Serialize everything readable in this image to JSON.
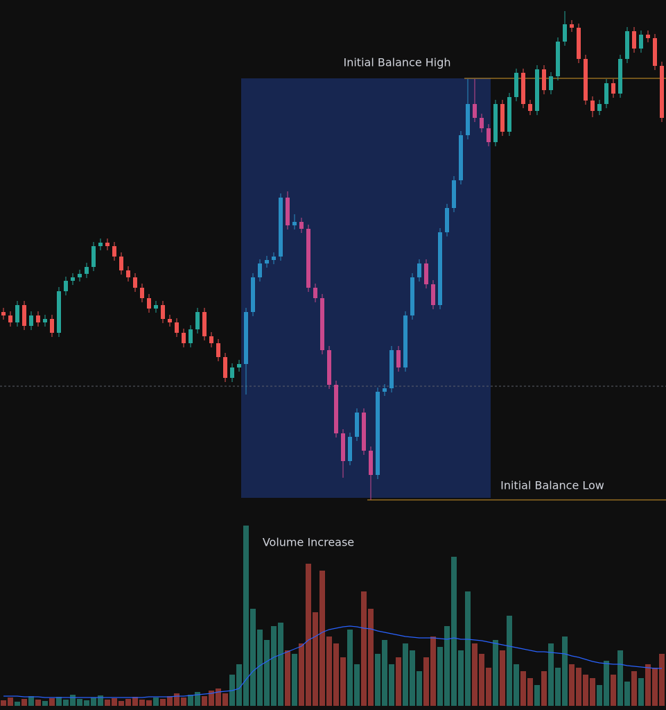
{
  "chart_data": {
    "type": "candlestick",
    "ylim": [
      0,
      1024
    ],
    "volume_ylim": [
      0,
      280
    ],
    "up_color": "#26a69a",
    "down_color": "#ef5350",
    "highlight_up_color": "#2a8fc4",
    "highlight_down_color": "#c9488c",
    "volume_up_color": "#22695f",
    "volume_down_color": "#8a3530",
    "volume_ma_color": "#2962ff",
    "box_color": "#172650",
    "level_color": "#d39a2a",
    "reference_line": 467,
    "initial_balance_high": 911,
    "initial_balance_low": 303,
    "annotations": [
      "Initial Balance High",
      "Initial Balance Low",
      "Volume Increase"
    ],
    "ohlc": [
      [
        574,
        580,
        563,
        569
      ],
      [
        569,
        575,
        553,
        559
      ],
      [
        559,
        590,
        553,
        584
      ],
      [
        584,
        590,
        548,
        554
      ],
      [
        554,
        575,
        548,
        569
      ],
      [
        569,
        575,
        553,
        559
      ],
      [
        559,
        570,
        553,
        564
      ],
      [
        564,
        570,
        538,
        544
      ],
      [
        544,
        610,
        538,
        604
      ],
      [
        604,
        625,
        598,
        619
      ],
      [
        619,
        630,
        613,
        624
      ],
      [
        624,
        635,
        618,
        629
      ],
      [
        629,
        645,
        623,
        639
      ],
      [
        639,
        675,
        633,
        669
      ],
      [
        669,
        680,
        663,
        674
      ],
      [
        674,
        680,
        663,
        669
      ],
      [
        669,
        675,
        648,
        654
      ],
      [
        654,
        660,
        628,
        634
      ],
      [
        634,
        640,
        618,
        624
      ],
      [
        624,
        630,
        603,
        609
      ],
      [
        609,
        615,
        588,
        594
      ],
      [
        594,
        600,
        573,
        579
      ],
      [
        579,
        590,
        573,
        584
      ],
      [
        584,
        590,
        558,
        564
      ],
      [
        564,
        570,
        553,
        559
      ],
      [
        559,
        565,
        538,
        544
      ],
      [
        544,
        550,
        523,
        529
      ],
      [
        529,
        555,
        523,
        549
      ],
      [
        549,
        580,
        543,
        574
      ],
      [
        574,
        580,
        533,
        539
      ],
      [
        539,
        545,
        523,
        529
      ],
      [
        529,
        535,
        503,
        509
      ],
      [
        509,
        515,
        473,
        479
      ],
      [
        479,
        500,
        473,
        494
      ],
      [
        494,
        505,
        488,
        499
      ],
      [
        499,
        580,
        455,
        574
      ],
      [
        574,
        630,
        568,
        624
      ],
      [
        624,
        650,
        618,
        644
      ],
      [
        644,
        655,
        638,
        649
      ],
      [
        649,
        660,
        643,
        654
      ],
      [
        654,
        745,
        648,
        739
      ],
      [
        739,
        748,
        693,
        699
      ],
      [
        699,
        715,
        693,
        704
      ],
      [
        704,
        710,
        688,
        694
      ],
      [
        694,
        700,
        603,
        609
      ],
      [
        609,
        615,
        588,
        594
      ],
      [
        594,
        600,
        513,
        519
      ],
      [
        519,
        525,
        463,
        469
      ],
      [
        469,
        475,
        393,
        399
      ],
      [
        399,
        405,
        335,
        359
      ],
      [
        359,
        400,
        353,
        394
      ],
      [
        394,
        435,
        388,
        429
      ],
      [
        429,
        435,
        368,
        374
      ],
      [
        374,
        380,
        303,
        339
      ],
      [
        339,
        465,
        333,
        459
      ],
      [
        459,
        470,
        453,
        464
      ],
      [
        464,
        525,
        458,
        519
      ],
      [
        519,
        525,
        488,
        494
      ],
      [
        494,
        575,
        488,
        569
      ],
      [
        569,
        630,
        563,
        624
      ],
      [
        624,
        650,
        618,
        644
      ],
      [
        644,
        650,
        608,
        614
      ],
      [
        614,
        620,
        578,
        584
      ],
      [
        584,
        695,
        578,
        689
      ],
      [
        689,
        730,
        683,
        724
      ],
      [
        724,
        770,
        718,
        764
      ],
      [
        764,
        835,
        758,
        829
      ],
      [
        829,
        910,
        823,
        874
      ],
      [
        874,
        910,
        848,
        854
      ],
      [
        854,
        860,
        833,
        839
      ],
      [
        839,
        845,
        813,
        819
      ],
      [
        819,
        880,
        813,
        874
      ],
      [
        874,
        880,
        828,
        834
      ],
      [
        834,
        890,
        828,
        884
      ],
      [
        884,
        925,
        878,
        919
      ],
      [
        919,
        925,
        868,
        874
      ],
      [
        874,
        880,
        858,
        864
      ],
      [
        864,
        930,
        858,
        924
      ],
      [
        924,
        930,
        888,
        894
      ],
      [
        894,
        920,
        888,
        914
      ],
      [
        914,
        970,
        908,
        964
      ],
      [
        964,
        1008,
        958,
        989
      ],
      [
        989,
        995,
        978,
        984
      ],
      [
        984,
        990,
        933,
        939
      ],
      [
        939,
        945,
        873,
        879
      ],
      [
        879,
        885,
        855,
        864
      ],
      [
        864,
        880,
        858,
        874
      ],
      [
        874,
        910,
        868,
        904
      ],
      [
        904,
        910,
        883,
        889
      ],
      [
        889,
        945,
        883,
        939
      ],
      [
        939,
        985,
        933,
        979
      ],
      [
        979,
        985,
        948,
        954
      ],
      [
        954,
        980,
        948,
        974
      ],
      [
        974,
        980,
        963,
        969
      ],
      [
        969,
        975,
        923,
        929
      ],
      [
        929,
        935,
        848,
        854
      ]
    ],
    "volume": [
      8,
      12,
      6,
      10,
      14,
      9,
      7,
      11,
      13,
      9,
      16,
      10,
      8,
      12,
      15,
      9,
      11,
      7,
      10,
      13,
      9,
      8,
      12,
      10,
      14,
      18,
      12,
      16,
      20,
      14,
      22,
      25,
      18,
      45,
      60,
      260,
      140,
      110,
      95,
      115,
      120,
      80,
      75,
      90,
      205,
      135,
      195,
      100,
      90,
      70,
      110,
      60,
      165,
      140,
      75,
      95,
      60,
      70,
      90,
      80,
      50,
      70,
      100,
      85,
      115,
      215,
      80,
      165,
      90,
      75,
      55,
      95,
      80,
      130,
      60,
      50,
      40,
      30,
      50,
      90,
      55,
      100,
      60,
      55,
      45,
      40,
      30,
      65,
      45,
      80,
      35,
      50,
      40,
      60,
      55,
      75
    ],
    "volume_ma": [
      14,
      14,
      14,
      13,
      13,
      13,
      12,
      12,
      12,
      12,
      12,
      12,
      12,
      12,
      12,
      12,
      12,
      12,
      12,
      12,
      12,
      13,
      13,
      13,
      13,
      14,
      14,
      15,
      16,
      17,
      18,
      20,
      21,
      22,
      25,
      38,
      50,
      58,
      64,
      70,
      74,
      78,
      82,
      86,
      95,
      100,
      106,
      110,
      112,
      114,
      115,
      114,
      112,
      111,
      108,
      106,
      104,
      102,
      100,
      99,
      98,
      98,
      98,
      97,
      96,
      98,
      96,
      96,
      95,
      94,
      92,
      90,
      88,
      86,
      84,
      82,
      80,
      78,
      78,
      77,
      76,
      75,
      72,
      70,
      67,
      64,
      62,
      61,
      60,
      60,
      58,
      57,
      56,
      55,
      54,
      54
    ]
  }
}
